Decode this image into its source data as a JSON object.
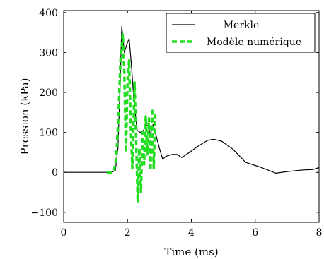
{
  "chart_data": {
    "type": "line",
    "xlabel": "Time (ms)",
    "ylabel": "Pression (kPa)",
    "xlim": [
      0,
      8
    ],
    "ylim": [
      -125,
      405
    ],
    "x_ticks": [
      0,
      2,
      4,
      6,
      8
    ],
    "y_ticks": [
      -100,
      0,
      100,
      200,
      300,
      400
    ],
    "grid": false,
    "legend_position": "top-right",
    "series": [
      {
        "name": "Merkle",
        "color": "#000000",
        "style": "solid",
        "points": [
          [
            0,
            0
          ],
          [
            1.5,
            0
          ],
          [
            1.62,
            5
          ],
          [
            1.7,
            60
          ],
          [
            1.76,
            200
          ],
          [
            1.82,
            365
          ],
          [
            1.9,
            300
          ],
          [
            1.98,
            320
          ],
          [
            2.05,
            335
          ],
          [
            2.12,
            270
          ],
          [
            2.2,
            180
          ],
          [
            2.3,
            105
          ],
          [
            2.4,
            100
          ],
          [
            2.5,
            105
          ],
          [
            2.58,
            120
          ],
          [
            2.65,
            115
          ],
          [
            2.72,
            95
          ],
          [
            2.8,
            120
          ],
          [
            2.9,
            90
          ],
          [
            3.0,
            60
          ],
          [
            3.1,
            33
          ],
          [
            3.2,
            40
          ],
          [
            3.4,
            45
          ],
          [
            3.55,
            45
          ],
          [
            3.7,
            37
          ],
          [
            3.9,
            48
          ],
          [
            4.2,
            65
          ],
          [
            4.5,
            80
          ],
          [
            4.7,
            83
          ],
          [
            4.95,
            78
          ],
          [
            5.3,
            58
          ],
          [
            5.7,
            25
          ],
          [
            6.2,
            12
          ],
          [
            6.65,
            -2
          ],
          [
            7.0,
            2
          ],
          [
            7.5,
            6
          ],
          [
            7.8,
            7
          ],
          [
            8.0,
            12
          ]
        ]
      },
      {
        "name": "Modèle numérique",
        "color": "#22dd22",
        "style": "dashed",
        "points": [
          [
            1.35,
            0
          ],
          [
            1.5,
            0
          ],
          [
            1.58,
            5
          ],
          [
            1.65,
            40
          ],
          [
            1.72,
            150
          ],
          [
            1.78,
            280
          ],
          [
            1.85,
            345
          ],
          [
            1.9,
            250
          ],
          [
            1.95,
            50
          ],
          [
            2.0,
            230
          ],
          [
            2.05,
            280
          ],
          [
            2.1,
            120
          ],
          [
            2.15,
            10
          ],
          [
            2.22,
            225
          ],
          [
            2.27,
            80
          ],
          [
            2.32,
            -75
          ],
          [
            2.37,
            60
          ],
          [
            2.42,
            -50
          ],
          [
            2.47,
            100
          ],
          [
            2.52,
            20
          ],
          [
            2.57,
            140
          ],
          [
            2.62,
            45
          ],
          [
            2.67,
            135
          ],
          [
            2.72,
            5
          ],
          [
            2.77,
            160
          ],
          [
            2.82,
            10
          ],
          [
            2.87,
            145
          ]
        ]
      }
    ]
  }
}
